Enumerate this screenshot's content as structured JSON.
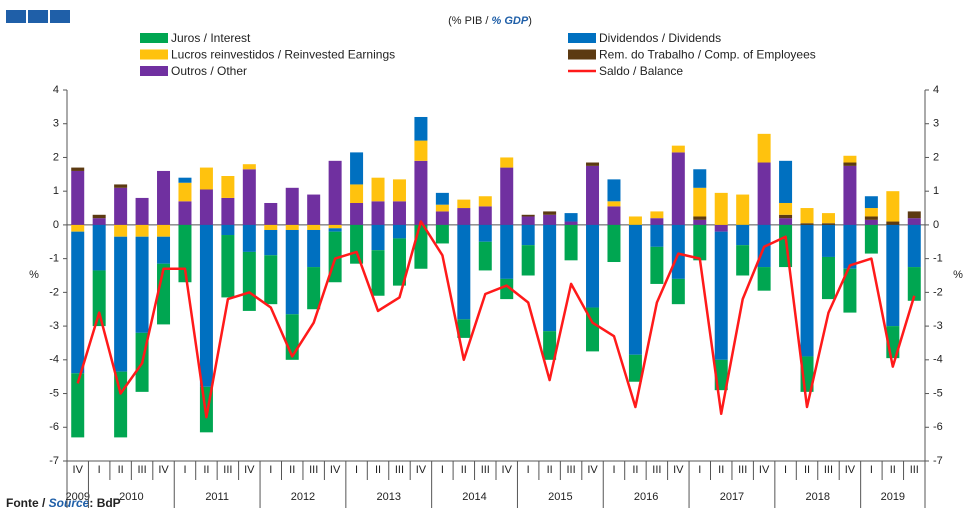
{
  "chart_data": {
    "type": "bar",
    "stacked": true,
    "subtitle": [
      "(% PIB / ",
      "% GDP",
      ")"
    ],
    "source": [
      "Fonte / ",
      "Source",
      ": BdP"
    ],
    "ylabel": "%",
    "ylim": [
      -7,
      4
    ],
    "yticks": [
      -7,
      -6,
      -5,
      -4,
      -3,
      -2,
      -1,
      0,
      1,
      2,
      3,
      4
    ],
    "categories": [
      "IV",
      "I",
      "II",
      "III",
      "IV",
      "I",
      "II",
      "III",
      "IV",
      "I",
      "II",
      "III",
      "IV",
      "I",
      "II",
      "III",
      "IV",
      "I",
      "II",
      "III",
      "IV",
      "I",
      "II",
      "III",
      "IV",
      "I",
      "II",
      "III",
      "IV",
      "I",
      "II",
      "III",
      "IV",
      "I",
      "II",
      "III",
      "IV",
      "I",
      "II",
      "III"
    ],
    "years": [
      "2009",
      "2010",
      "2011",
      "2012",
      "2013",
      "2014",
      "2015",
      "2016",
      "2017",
      "2018",
      "2019"
    ],
    "series": [
      {
        "name": "Juros / Interest",
        "color": "#00a651",
        "values": [
          -1.9,
          -1.65,
          -1.95,
          -1.75,
          -1.8,
          -1.7,
          -1.35,
          -1.85,
          -1.75,
          -1.45,
          -1.35,
          -1.25,
          -1.5,
          -1.15,
          -1.35,
          -1.4,
          -1.3,
          -0.55,
          -0.55,
          -0.85,
          -0.6,
          -0.9,
          -0.85,
          -1.05,
          -1.3,
          -1.1,
          -0.8,
          -1.1,
          -0.75,
          -1.05,
          -0.9,
          -0.9,
          -0.7,
          -1.25,
          -1.05,
          -1.25,
          -1.3,
          -0.85,
          -0.95,
          -1.0
        ]
      },
      {
        "name": "Dividendos / Dividends",
        "color": "#0070c0",
        "values": [
          -4.2,
          -1.35,
          -4.0,
          -2.85,
          -0.8,
          0.15,
          -4.8,
          -0.3,
          -0.8,
          -0.75,
          -2.5,
          -1.1,
          -0.1,
          0.95,
          -0.75,
          -0.4,
          0.7,
          0.35,
          -2.8,
          -0.5,
          -1.6,
          -0.6,
          -3.15,
          0.25,
          -2.45,
          0.65,
          -3.85,
          -0.65,
          -1.6,
          0.55,
          -3.8,
          -0.6,
          -1.25,
          1.25,
          -3.9,
          -0.95,
          -1.3,
          0.35,
          -3.0,
          -1.25
        ]
      },
      {
        "name": "Lucros reinvestidos / Reinvested Earnings",
        "color": "#ffc20e",
        "values": [
          -0.2,
          0,
          -0.35,
          -0.35,
          -0.35,
          0.55,
          0.65,
          0.65,
          0.15,
          -0.15,
          -0.15,
          -0.15,
          -0.1,
          0.55,
          0.7,
          0.65,
          0.6,
          0.2,
          0.25,
          0.3,
          0.3,
          0,
          0,
          0,
          0,
          0.15,
          0.25,
          0.2,
          0.2,
          0.85,
          0.95,
          0.9,
          0.85,
          0.35,
          0.45,
          0.3,
          0.2,
          0.25,
          0.9,
          0
        ]
      },
      {
        "name": "Rem. do Trabalho / Comp. of Employees",
        "color": "#5c3a12",
        "values": [
          0.1,
          0.1,
          0.1,
          0,
          0,
          0,
          0,
          0,
          0,
          0,
          0,
          0,
          0,
          0,
          0,
          0,
          0,
          0,
          0,
          0,
          0,
          0.05,
          0.1,
          0,
          0.1,
          0,
          0,
          0,
          0,
          0.1,
          0,
          0,
          0,
          0.1,
          0.05,
          0.05,
          0.1,
          0.1,
          0.1,
          0.2
        ]
      },
      {
        "name": "Outros / Other",
        "color": "#7030a0",
        "values": [
          1.6,
          0.2,
          1.1,
          0.8,
          1.6,
          0.7,
          1.05,
          0.8,
          1.65,
          0.65,
          1.1,
          0.9,
          1.9,
          0.65,
          0.7,
          0.7,
          1.9,
          0.4,
          0.5,
          0.55,
          1.7,
          0.25,
          0.3,
          0.1,
          1.75,
          0.55,
          0,
          0.2,
          2.15,
          0.15,
          -0.2,
          0,
          1.85,
          0.2,
          0,
          0,
          1.75,
          0.15,
          0,
          0.2
        ]
      },
      {
        "name": "Saldo / Balance",
        "type": "line",
        "color": "#ff1a1a",
        "values": [
          -4.7,
          -2.6,
          -5.0,
          -4.1,
          -1.3,
          -1.3,
          -5.7,
          -2.2,
          -2.0,
          -2.45,
          -3.9,
          -2.9,
          -1.0,
          -0.8,
          -2.55,
          -2.15,
          0.1,
          -0.9,
          -4.0,
          -2.05,
          -1.8,
          -2.3,
          -4.6,
          -1.75,
          -2.9,
          -3.3,
          -5.4,
          -2.3,
          -0.85,
          -1.0,
          -5.6,
          -2.2,
          -0.65,
          -0.35,
          -5.4,
          -2.6,
          -1.2,
          -1.0,
          -4.2,
          -2.1
        ]
      }
    ]
  }
}
